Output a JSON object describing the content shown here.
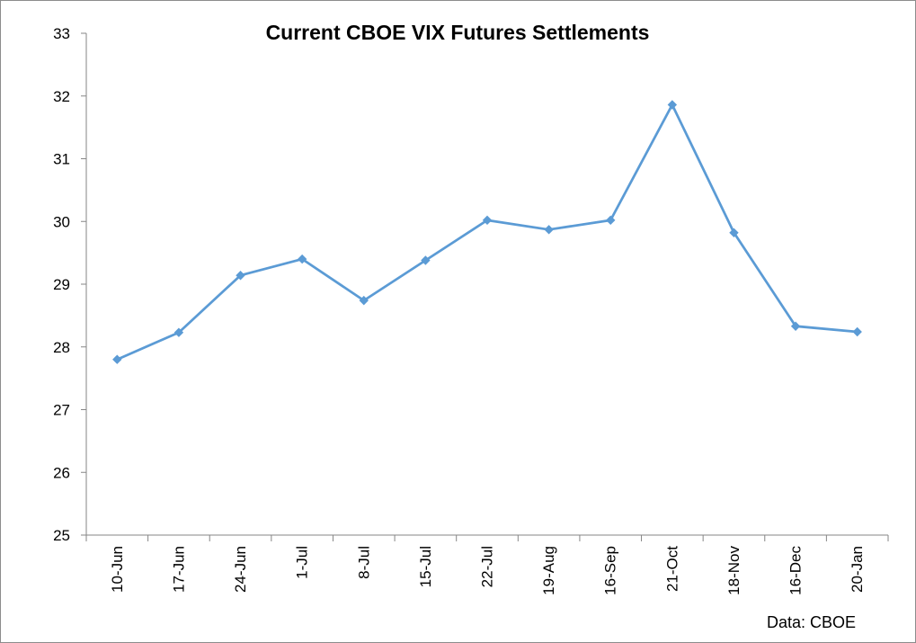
{
  "chart_data": {
    "type": "line",
    "title": "Current CBOE VIX Futures Settlements",
    "xlabel": "",
    "ylabel": "",
    "categories": [
      "10-Jun",
      "17-Jun",
      "24-Jun",
      "1-Jul",
      "8-Jul",
      "15-Jul",
      "22-Jul",
      "19-Aug",
      "16-Sep",
      "21-Oct",
      "18-Nov",
      "16-Dec",
      "20-Jan"
    ],
    "series": [
      {
        "values": [
          27.8,
          28.23,
          29.14,
          29.4,
          28.74,
          29.38,
          30.02,
          29.87,
          30.02,
          31.86,
          29.82,
          28.33,
          28.24
        ]
      }
    ],
    "ylim": [
      25,
      33
    ],
    "yticks": [
      25,
      26,
      27,
      28,
      29,
      30,
      31,
      32,
      33
    ],
    "grid": false,
    "legend": "none",
    "marker": "diamond",
    "line_color": "#5b9bd5",
    "axis_color": "#868686",
    "source_note": "Data: CBOE"
  }
}
